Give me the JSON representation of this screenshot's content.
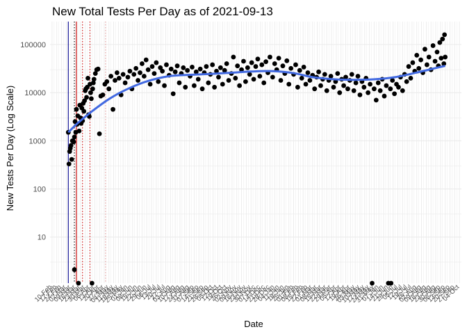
{
  "chart_data": {
    "type": "scatter",
    "title": "New Total Tests Per Day as of 2021-09-13",
    "xlabel": "Date",
    "ylabel": "New Tests Per Day (Log Scale)",
    "y_scale": "log",
    "ylim": [
      1.1,
      300000
    ],
    "xlim": [
      "2020-02-07",
      "2021-10-07"
    ],
    "y_ticks": [
      10,
      100,
      1000,
      10000,
      100000
    ],
    "y_tick_labels": [
      "10",
      "100",
      "1000",
      "10000",
      "100000"
    ],
    "x_tick_labels": [
      "10-Feb",
      "17-Feb",
      "24-Feb",
      "02-Mar",
      "09-Mar",
      "16-Mar",
      "23-Mar",
      "30-Mar",
      "06-Apr",
      "13-Apr",
      "20-Apr",
      "27-Apr",
      "04-May",
      "11-May",
      "18-May",
      "25-May",
      "01-Jun",
      "08-Jun",
      "15-Jun",
      "22-Jun",
      "29-Jun",
      "06-Jul",
      "13-Jul",
      "20-Jul",
      "27-Jul",
      "03-Aug",
      "10-Aug",
      "17-Aug",
      "24-Aug",
      "31-Aug",
      "07-Sep",
      "14-Sep",
      "21-Sep",
      "28-Sep",
      "05-Oct",
      "12-Oct",
      "19-Oct",
      "26-Oct",
      "02-Nov",
      "09-Nov",
      "16-Nov",
      "23-Nov",
      "30-Nov",
      "07-Dec",
      "14-Dec",
      "21-Dec",
      "28-Dec",
      "04-Jan",
      "11-Jan",
      "18-Jan",
      "25-Jan",
      "01-Feb",
      "08-Feb",
      "15-Feb",
      "22-Feb",
      "01-Mar",
      "08-Mar",
      "15-Mar",
      "22-Mar",
      "29-Mar",
      "05-Apr",
      "12-Apr",
      "19-Apr",
      "26-Apr",
      "03-May",
      "10-May",
      "17-May",
      "24-May",
      "31-May",
      "07-Jun",
      "14-Jun",
      "21-Jun",
      "28-Jun",
      "05-Jul",
      "12-Jul",
      "19-Jul",
      "26-Jul",
      "02-Aug",
      "09-Aug",
      "16-Aug",
      "23-Aug",
      "30-Aug",
      "06-Sep",
      "13-Sep",
      "20-Sep",
      "27-Sep",
      "04-Oct"
    ],
    "x_tick_first_date": "2020-02-10",
    "x_tick_interval_days": 7,
    "grid": true,
    "colors": {
      "points": "#000000",
      "smooth": "#4169e1",
      "vline_blue": "#00008b",
      "vline_red": "#cc0000",
      "grid": "#ebebeb"
    },
    "vertical_lines": [
      {
        "date": "2020-03-05",
        "color": "#00008b",
        "style": "solid"
      },
      {
        "date": "2020-03-14",
        "color": "#000000",
        "style": "dotted"
      },
      {
        "date": "2020-03-17",
        "color": "#cc0000",
        "style": "solid"
      },
      {
        "date": "2020-03-26",
        "color": "#cc0000",
        "style": "dotted"
      },
      {
        "date": "2020-04-06",
        "color": "#cc0000",
        "style": "dotted"
      },
      {
        "date": "2020-04-29",
        "color": "#e8a0a0",
        "style": "dotted"
      }
    ],
    "smooth_line": [
      {
        "x": "2020-03-05",
        "y": 1500
      },
      {
        "x": "2020-03-20",
        "y": 2400
      },
      {
        "x": "2020-04-10",
        "y": 4200
      },
      {
        "x": "2020-05-05",
        "y": 7500
      },
      {
        "x": "2020-06-01",
        "y": 12000
      },
      {
        "x": "2020-07-01",
        "y": 17500
      },
      {
        "x": "2020-08-01",
        "y": 22000
      },
      {
        "x": "2020-09-01",
        "y": 23500
      },
      {
        "x": "2020-10-01",
        "y": 24500
      },
      {
        "x": "2020-11-01",
        "y": 26000
      },
      {
        "x": "2020-12-01",
        "y": 27500
      },
      {
        "x": "2021-01-01",
        "y": 28000
      },
      {
        "x": "2021-02-01",
        "y": 25500
      },
      {
        "x": "2021-03-01",
        "y": 21000
      },
      {
        "x": "2021-04-01",
        "y": 19000
      },
      {
        "x": "2021-05-01",
        "y": 18500
      },
      {
        "x": "2021-06-01",
        "y": 19000
      },
      {
        "x": "2021-07-01",
        "y": 21000
      },
      {
        "x": "2021-08-01",
        "y": 26000
      },
      {
        "x": "2021-09-01",
        "y": 33000
      },
      {
        "x": "2021-09-13",
        "y": 36000
      }
    ],
    "points": [
      {
        "x": "2020-03-05",
        "y": 1500
      },
      {
        "x": "2020-03-06",
        "y": 330
      },
      {
        "x": "2020-03-07",
        "y": 600
      },
      {
        "x": "2020-03-08",
        "y": 700
      },
      {
        "x": "2020-03-09",
        "y": 800
      },
      {
        "x": "2020-03-10",
        "y": 410
      },
      {
        "x": "2020-03-11",
        "y": 1000
      },
      {
        "x": "2020-03-12",
        "y": 1000
      },
      {
        "x": "2020-03-13",
        "y": 950
      },
      {
        "x": "2020-03-14",
        "y": 2.1
      },
      {
        "x": "2020-03-14",
        "y": 1200
      },
      {
        "x": "2020-03-15",
        "y": 2500
      },
      {
        "x": "2020-03-16",
        "y": 1500
      },
      {
        "x": "2020-03-17",
        "y": 4500
      },
      {
        "x": "2020-03-18",
        "y": 2200
      },
      {
        "x": "2020-03-19",
        "y": 3300
      },
      {
        "x": "2020-03-20",
        "y": 1.1
      },
      {
        "x": "2020-03-21",
        "y": 1600
      },
      {
        "x": "2020-03-22",
        "y": 5500
      },
      {
        "x": "2020-03-23",
        "y": 3000
      },
      {
        "x": "2020-03-24",
        "y": 2300
      },
      {
        "x": "2020-03-25",
        "y": 4800
      },
      {
        "x": "2020-03-26",
        "y": 2600
      },
      {
        "x": "2020-03-27",
        "y": 6000
      },
      {
        "x": "2020-03-28",
        "y": 4100
      },
      {
        "x": "2020-03-29",
        "y": 6800
      },
      {
        "x": "2020-03-30",
        "y": 11000
      },
      {
        "x": "2020-03-31",
        "y": 12000
      },
      {
        "x": "2020-04-01",
        "y": 8000
      },
      {
        "x": "2020-04-02",
        "y": 13000
      },
      {
        "x": "2020-04-03",
        "y": 20000
      },
      {
        "x": "2020-04-04",
        "y": 3500
      },
      {
        "x": "2020-04-05",
        "y": 3200
      },
      {
        "x": "2020-04-06",
        "y": 15000
      },
      {
        "x": "2020-04-07",
        "y": 10000
      },
      {
        "x": "2020-04-08",
        "y": 7500
      },
      {
        "x": "2020-04-09",
        "y": 1.1
      },
      {
        "x": "2020-04-10",
        "y": 12000
      },
      {
        "x": "2020-04-11",
        "y": 16000
      },
      {
        "x": "2020-04-12",
        "y": 19000
      },
      {
        "x": "2020-04-14",
        "y": 25000
      },
      {
        "x": "2020-04-16",
        "y": 30000
      },
      {
        "x": "2020-04-18",
        "y": 31000
      },
      {
        "x": "2020-04-20",
        "y": 1400
      },
      {
        "x": "2020-04-22",
        "y": 8500
      },
      {
        "x": "2020-04-25",
        "y": 9000
      },
      {
        "x": "2020-04-28",
        "y": 15000
      },
      {
        "x": "2020-05-01",
        "y": 17000
      },
      {
        "x": "2020-05-04",
        "y": 12000
      },
      {
        "x": "2020-05-07",
        "y": 22000
      },
      {
        "x": "2020-05-10",
        "y": 4500
      },
      {
        "x": "2020-05-13",
        "y": 18000
      },
      {
        "x": "2020-05-16",
        "y": 26000
      },
      {
        "x": "2020-05-19",
        "y": 20000
      },
      {
        "x": "2020-05-22",
        "y": 9000
      },
      {
        "x": "2020-05-25",
        "y": 24000
      },
      {
        "x": "2020-05-28",
        "y": 16000
      },
      {
        "x": "2020-06-01",
        "y": 21000
      },
      {
        "x": "2020-06-04",
        "y": 28000
      },
      {
        "x": "2020-06-07",
        "y": 12000
      },
      {
        "x": "2020-06-10",
        "y": 24000
      },
      {
        "x": "2020-06-13",
        "y": 32000
      },
      {
        "x": "2020-06-16",
        "y": 18000
      },
      {
        "x": "2020-06-19",
        "y": 26000
      },
      {
        "x": "2020-06-22",
        "y": 40000
      },
      {
        "x": "2020-06-25",
        "y": 22000
      },
      {
        "x": "2020-06-28",
        "y": 48000
      },
      {
        "x": "2020-07-01",
        "y": 30000
      },
      {
        "x": "2020-07-04",
        "y": 15000
      },
      {
        "x": "2020-07-07",
        "y": 35000
      },
      {
        "x": "2020-07-10",
        "y": 25000
      },
      {
        "x": "2020-07-13",
        "y": 42000
      },
      {
        "x": "2020-07-16",
        "y": 17000
      },
      {
        "x": "2020-07-19",
        "y": 33000
      },
      {
        "x": "2020-07-22",
        "y": 28000
      },
      {
        "x": "2020-07-25",
        "y": 14000
      },
      {
        "x": "2020-07-28",
        "y": 38000
      },
      {
        "x": "2020-08-01",
        "y": 23000
      },
      {
        "x": "2020-08-04",
        "y": 31000
      },
      {
        "x": "2020-08-07",
        "y": 9500
      },
      {
        "x": "2020-08-10",
        "y": 27000
      },
      {
        "x": "2020-08-13",
        "y": 36000
      },
      {
        "x": "2020-08-16",
        "y": 16000
      },
      {
        "x": "2020-08-19",
        "y": 25000
      },
      {
        "x": "2020-08-22",
        "y": 33000
      },
      {
        "x": "2020-08-25",
        "y": 13000
      },
      {
        "x": "2020-08-28",
        "y": 29000
      },
      {
        "x": "2020-09-01",
        "y": 22000
      },
      {
        "x": "2020-09-04",
        "y": 34000
      },
      {
        "x": "2020-09-07",
        "y": 14000
      },
      {
        "x": "2020-09-10",
        "y": 27000
      },
      {
        "x": "2020-09-13",
        "y": 19000
      },
      {
        "x": "2020-09-16",
        "y": 31000
      },
      {
        "x": "2020-09-19",
        "y": 12000
      },
      {
        "x": "2020-09-22",
        "y": 26000
      },
      {
        "x": "2020-09-25",
        "y": 35000
      },
      {
        "x": "2020-09-28",
        "y": 16000
      },
      {
        "x": "2020-10-01",
        "y": 24000
      },
      {
        "x": "2020-10-04",
        "y": 38000
      },
      {
        "x": "2020-10-07",
        "y": 13000
      },
      {
        "x": "2020-10-10",
        "y": 28000
      },
      {
        "x": "2020-10-13",
        "y": 21000
      },
      {
        "x": "2020-10-16",
        "y": 33000
      },
      {
        "x": "2020-10-19",
        "y": 15000
      },
      {
        "x": "2020-10-22",
        "y": 29000
      },
      {
        "x": "2020-10-25",
        "y": 40000
      },
      {
        "x": "2020-10-28",
        "y": 18000
      },
      {
        "x": "2020-11-01",
        "y": 25000
      },
      {
        "x": "2020-11-04",
        "y": 55000
      },
      {
        "x": "2020-11-07",
        "y": 20000
      },
      {
        "x": "2020-11-10",
        "y": 36000
      },
      {
        "x": "2020-11-13",
        "y": 14000
      },
      {
        "x": "2020-11-16",
        "y": 30000
      },
      {
        "x": "2020-11-19",
        "y": 45000
      },
      {
        "x": "2020-11-22",
        "y": 17000
      },
      {
        "x": "2020-11-25",
        "y": 33000
      },
      {
        "x": "2020-11-28",
        "y": 24000
      },
      {
        "x": "2020-12-01",
        "y": 42000
      },
      {
        "x": "2020-12-04",
        "y": 19000
      },
      {
        "x": "2020-12-07",
        "y": 35000
      },
      {
        "x": "2020-12-10",
        "y": 50000
      },
      {
        "x": "2020-12-13",
        "y": 22000
      },
      {
        "x": "2020-12-16",
        "y": 38000
      },
      {
        "x": "2020-12-19",
        "y": 16000
      },
      {
        "x": "2020-12-22",
        "y": 44000
      },
      {
        "x": "2020-12-25",
        "y": 26000
      },
      {
        "x": "2020-12-28",
        "y": 55000
      },
      {
        "x": "2021-01-01",
        "y": 21000
      },
      {
        "x": "2021-01-04",
        "y": 40000
      },
      {
        "x": "2021-01-07",
        "y": 30000
      },
      {
        "x": "2021-01-10",
        "y": 52000
      },
      {
        "x": "2021-01-13",
        "y": 18000
      },
      {
        "x": "2021-01-16",
        "y": 36000
      },
      {
        "x": "2021-01-19",
        "y": 25000
      },
      {
        "x": "2021-01-22",
        "y": 46000
      },
      {
        "x": "2021-01-25",
        "y": 15000
      },
      {
        "x": "2021-01-28",
        "y": 32000
      },
      {
        "x": "2021-02-01",
        "y": 24000
      },
      {
        "x": "2021-02-04",
        "y": 38000
      },
      {
        "x": "2021-02-07",
        "y": 13000
      },
      {
        "x": "2021-02-10",
        "y": 29000
      },
      {
        "x": "2021-02-13",
        "y": 20000
      },
      {
        "x": "2021-02-16",
        "y": 34000
      },
      {
        "x": "2021-02-19",
        "y": 15000
      },
      {
        "x": "2021-02-22",
        "y": 26000
      },
      {
        "x": "2021-02-25",
        "y": 18000
      },
      {
        "x": "2021-03-01",
        "y": 23000
      },
      {
        "x": "2021-03-04",
        "y": 12000
      },
      {
        "x": "2021-03-07",
        "y": 21000
      },
      {
        "x": "2021-03-10",
        "y": 27000
      },
      {
        "x": "2021-03-13",
        "y": 14000
      },
      {
        "x": "2021-03-16",
        "y": 19000
      },
      {
        "x": "2021-03-19",
        "y": 24000
      },
      {
        "x": "2021-03-22",
        "y": 11000
      },
      {
        "x": "2021-03-25",
        "y": 18000
      },
      {
        "x": "2021-03-28",
        "y": 22000
      },
      {
        "x": "2021-04-01",
        "y": 13000
      },
      {
        "x": "2021-04-04",
        "y": 17000
      },
      {
        "x": "2021-04-07",
        "y": 25000
      },
      {
        "x": "2021-04-10",
        "y": 10000
      },
      {
        "x": "2021-04-13",
        "y": 19000
      },
      {
        "x": "2021-04-16",
        "y": 14000
      },
      {
        "x": "2021-04-19",
        "y": 21000
      },
      {
        "x": "2021-04-22",
        "y": 12000
      },
      {
        "x": "2021-04-25",
        "y": 18000
      },
      {
        "x": "2021-04-28",
        "y": 24000
      },
      {
        "x": "2021-05-01",
        "y": 11000
      },
      {
        "x": "2021-05-04",
        "y": 16000
      },
      {
        "x": "2021-05-07",
        "y": 22000
      },
      {
        "x": "2021-05-10",
        "y": 9000
      },
      {
        "x": "2021-05-13",
        "y": 17000
      },
      {
        "x": "2021-05-16",
        "y": 13000
      },
      {
        "x": "2021-05-19",
        "y": 20000
      },
      {
        "x": "2021-05-22",
        "y": 10000
      },
      {
        "x": "2021-05-25",
        "y": 15000
      },
      {
        "x": "2021-05-28",
        "y": 1.1
      },
      {
        "x": "2021-05-31",
        "y": 12000
      },
      {
        "x": "2021-06-03",
        "y": 7000
      },
      {
        "x": "2021-06-06",
        "y": 16000
      },
      {
        "x": "2021-06-09",
        "y": 11000
      },
      {
        "x": "2021-06-12",
        "y": 19000
      },
      {
        "x": "2021-06-15",
        "y": 8500
      },
      {
        "x": "2021-06-18",
        "y": 14000
      },
      {
        "x": "2021-06-21",
        "y": 1.1
      },
      {
        "x": "2021-06-24",
        "y": 12000
      },
      {
        "x": "2021-06-25",
        "y": 1.1
      },
      {
        "x": "2021-06-27",
        "y": 18000
      },
      {
        "x": "2021-06-30",
        "y": 9500
      },
      {
        "x": "2021-07-03",
        "y": 15000
      },
      {
        "x": "2021-07-06",
        "y": 13000
      },
      {
        "x": "2021-07-09",
        "y": 21000
      },
      {
        "x": "2021-07-12",
        "y": 11000
      },
      {
        "x": "2021-07-15",
        "y": 24000
      },
      {
        "x": "2021-07-18",
        "y": 17000
      },
      {
        "x": "2021-07-21",
        "y": 35000
      },
      {
        "x": "2021-07-24",
        "y": 20000
      },
      {
        "x": "2021-07-27",
        "y": 42000
      },
      {
        "x": "2021-07-30",
        "y": 28000
      },
      {
        "x": "2021-08-02",
        "y": 60000
      },
      {
        "x": "2021-08-05",
        "y": 32000
      },
      {
        "x": "2021-08-08",
        "y": 48000
      },
      {
        "x": "2021-08-11",
        "y": 26000
      },
      {
        "x": "2021-08-14",
        "y": 80000
      },
      {
        "x": "2021-08-17",
        "y": 38000
      },
      {
        "x": "2021-08-20",
        "y": 55000
      },
      {
        "x": "2021-08-23",
        "y": 30000
      },
      {
        "x": "2021-08-26",
        "y": 95000
      },
      {
        "x": "2021-08-29",
        "y": 45000
      },
      {
        "x": "2021-09-01",
        "y": 70000
      },
      {
        "x": "2021-09-03",
        "y": 36000
      },
      {
        "x": "2021-09-05",
        "y": 110000
      },
      {
        "x": "2021-09-07",
        "y": 52000
      },
      {
        "x": "2021-09-09",
        "y": 130000
      },
      {
        "x": "2021-09-11",
        "y": 40000
      },
      {
        "x": "2021-09-12",
        "y": 160000
      },
      {
        "x": "2021-09-13",
        "y": 55000
      }
    ]
  }
}
